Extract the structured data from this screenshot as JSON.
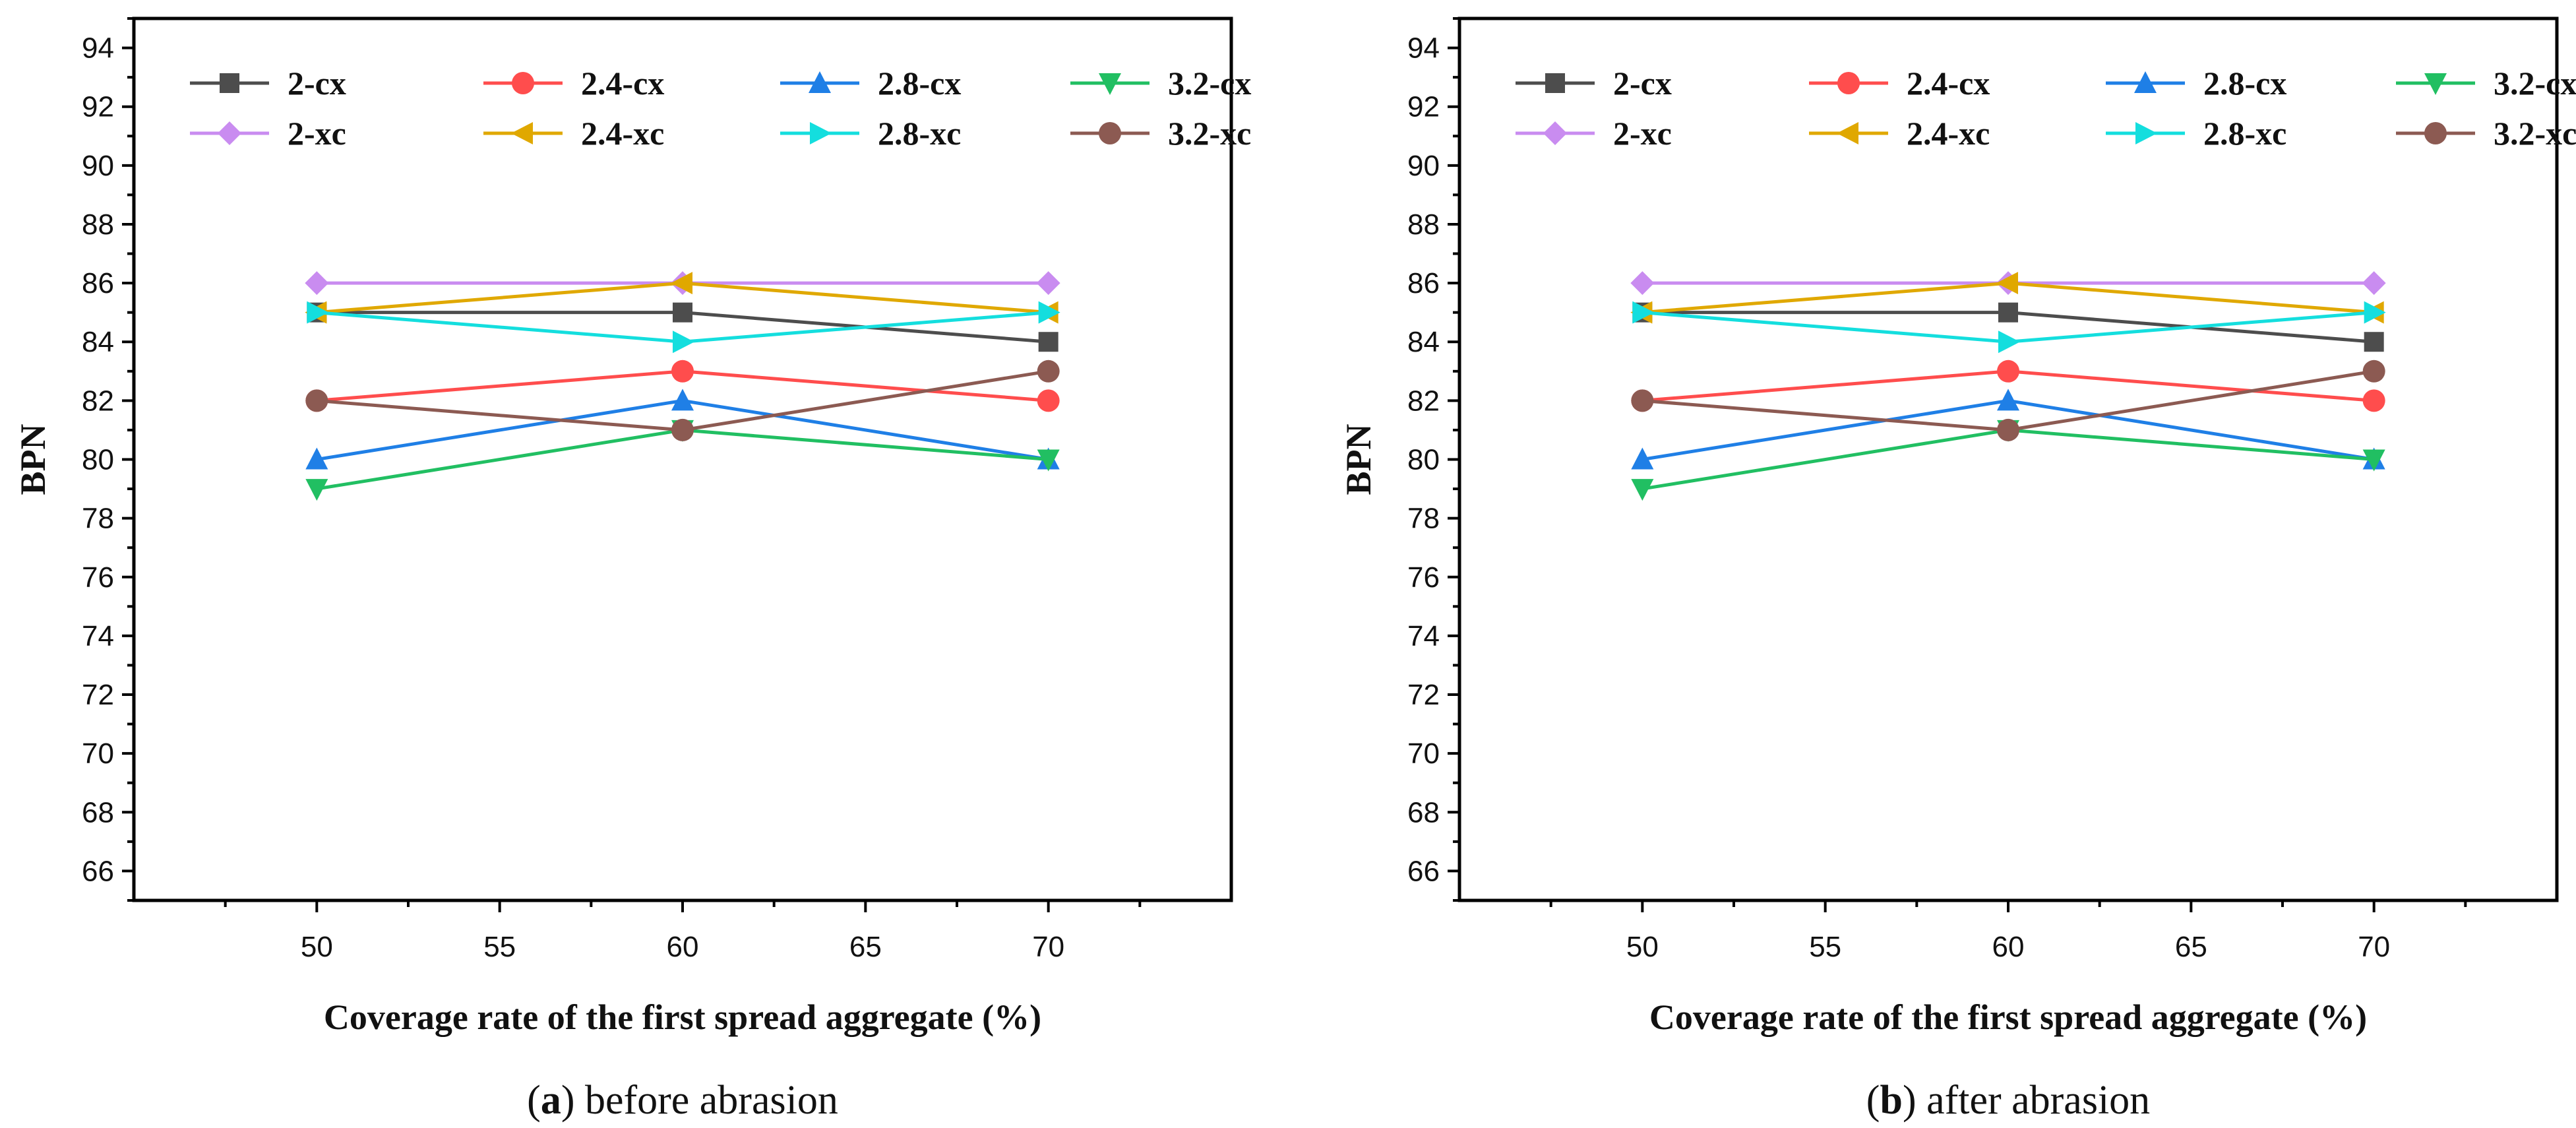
{
  "chart_data": [
    {
      "type": "line",
      "panel": "a",
      "caption_letter": "a",
      "caption_text": ") before abrasion",
      "xlabel": "Coverage rate of the first spread aggregate (%)",
      "ylabel": "BPN",
      "xlim": [
        45,
        75
      ],
      "ylim": [
        65,
        95
      ],
      "xticks": [
        50,
        55,
        60,
        65,
        70
      ],
      "yticks": [
        66,
        68,
        70,
        72,
        74,
        76,
        78,
        80,
        82,
        84,
        86,
        88,
        90,
        92,
        94
      ],
      "x": [
        50,
        60,
        70
      ],
      "legend_position": "top-left",
      "series": [
        {
          "name": "2-cx",
          "values": [
            85,
            85,
            84
          ],
          "color": "#4d4d4d",
          "marker": "square"
        },
        {
          "name": "2.4-cx",
          "values": [
            82,
            83,
            82
          ],
          "color": "#ff4d4d",
          "marker": "circle"
        },
        {
          "name": "2.8-cx",
          "values": [
            80,
            82,
            80
          ],
          "color": "#1f7fe6",
          "marker": "triangle-up"
        },
        {
          "name": "3.2-cx",
          "values": [
            79,
            81,
            80
          ],
          "color": "#21bf62",
          "marker": "triangle-down"
        },
        {
          "name": "2-xc",
          "values": [
            86,
            86,
            86
          ],
          "color": "#c98cf0",
          "marker": "diamond"
        },
        {
          "name": "2.4-xc",
          "values": [
            85,
            86,
            85
          ],
          "color": "#e0a800",
          "marker": "triangle-left"
        },
        {
          "name": "2.8-xc",
          "values": [
            85,
            84,
            85
          ],
          "color": "#14dede",
          "marker": "triangle-right"
        },
        {
          "name": "3.2-xc",
          "values": [
            82,
            81,
            83
          ],
          "color": "#8c5a52",
          "marker": "circle"
        }
      ]
    },
    {
      "type": "line",
      "panel": "b",
      "caption_letter": "b",
      "caption_text": ") after abrasion",
      "xlabel": "Coverage rate of the first spread aggregate (%)",
      "ylabel": "BPN",
      "xlim": [
        45,
        75
      ],
      "ylim": [
        65,
        95
      ],
      "xticks": [
        50,
        55,
        60,
        65,
        70
      ],
      "yticks": [
        66,
        68,
        70,
        72,
        74,
        76,
        78,
        80,
        82,
        84,
        86,
        88,
        90,
        92,
        94
      ],
      "x": [
        50,
        60,
        70
      ],
      "legend_position": "top-left",
      "series": [
        {
          "name": "2-cx",
          "values": [
            85,
            85,
            84
          ],
          "color": "#4d4d4d",
          "marker": "square"
        },
        {
          "name": "2.4-cx",
          "values": [
            82,
            83,
            82
          ],
          "color": "#ff4d4d",
          "marker": "circle"
        },
        {
          "name": "2.8-cx",
          "values": [
            80,
            82,
            80
          ],
          "color": "#1f7fe6",
          "marker": "triangle-up"
        },
        {
          "name": "3.2-cx",
          "values": [
            79,
            81,
            80
          ],
          "color": "#21bf62",
          "marker": "triangle-down"
        },
        {
          "name": "2-xc",
          "values": [
            86,
            86,
            86
          ],
          "color": "#c98cf0",
          "marker": "diamond"
        },
        {
          "name": "2.4-xc",
          "values": [
            85,
            86,
            85
          ],
          "color": "#e0a800",
          "marker": "triangle-left"
        },
        {
          "name": "2.8-xc",
          "values": [
            85,
            84,
            85
          ],
          "color": "#14dede",
          "marker": "triangle-right"
        },
        {
          "name": "3.2-xc",
          "values": [
            82,
            81,
            83
          ],
          "color": "#8c5a52",
          "marker": "circle"
        }
      ]
    }
  ]
}
